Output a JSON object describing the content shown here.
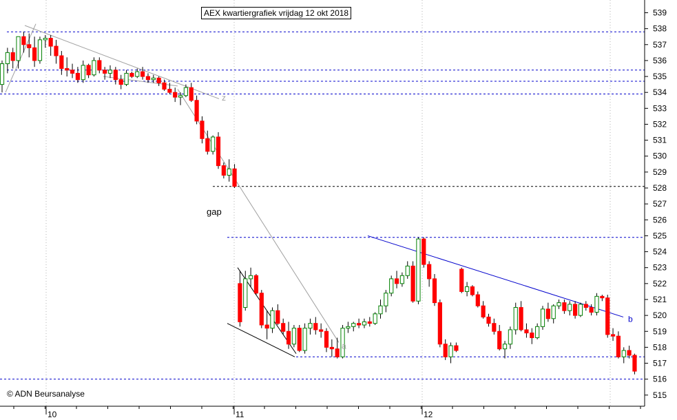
{
  "chart_data": {
    "type": "candlestick",
    "title": "AEX kwartiergrafiek vrijdag 12 okt 2018",
    "copyright": "© ADN Beursanalyse",
    "xlabel": "",
    "ylabel": "",
    "x_ticks": [
      "10",
      "11",
      "12"
    ],
    "y_ticks": [
      515,
      516,
      517,
      518,
      519,
      520,
      521,
      522,
      523,
      524,
      525,
      526,
      527,
      528,
      529,
      530,
      531,
      532,
      533,
      534,
      535,
      536,
      537,
      538,
      539
    ],
    "ylim": [
      514.3,
      539.8
    ],
    "grid": "vertical dotted",
    "colors": {
      "up": "#008000",
      "down": "#ff0000",
      "level": "#0000cc",
      "trend": "#0000cc",
      "aux_trend": "#a0a0a0"
    },
    "horizontal_levels": [
      537.8,
      535.4,
      534.7,
      533.9,
      528.1,
      524.9,
      517.4,
      516.0
    ],
    "annotations": [
      {
        "text": "gap"
      },
      {
        "text": "z"
      },
      {
        "text": "a"
      },
      {
        "text": "b"
      }
    ],
    "candles": [
      [
        534.5,
        536.0,
        534.0,
        535.8
      ],
      [
        535.8,
        536.8,
        535.2,
        536.5
      ],
      [
        536.5,
        536.8,
        535.5,
        536.0
      ],
      [
        536.0,
        537.5,
        535.5,
        537.5
      ],
      [
        537.5,
        537.8,
        536.5,
        537.0
      ],
      [
        537.0,
        537.7,
        536.2,
        536.8
      ],
      [
        536.8,
        537.5,
        535.6,
        536.0
      ],
      [
        536.0,
        537.5,
        535.8,
        537.3
      ],
      [
        537.3,
        537.6,
        536.8,
        537.4
      ],
      [
        537.4,
        537.6,
        536.3,
        536.9
      ],
      [
        536.9,
        537.3,
        535.8,
        536.3
      ],
      [
        536.3,
        536.6,
        535.1,
        535.5
      ],
      [
        535.5,
        536.2,
        535.0,
        535.4
      ],
      [
        535.4,
        535.8,
        534.9,
        535.2
      ],
      [
        535.2,
        535.6,
        534.6,
        534.8
      ],
      [
        534.8,
        536.0,
        534.6,
        535.7
      ],
      [
        535.7,
        535.8,
        534.9,
        535.1
      ],
      [
        535.1,
        536.2,
        535.0,
        536.0
      ],
      [
        536.0,
        536.2,
        535.2,
        535.4
      ],
      [
        535.4,
        535.6,
        534.8,
        535.2
      ],
      [
        535.2,
        535.7,
        534.9,
        535.4
      ],
      [
        535.4,
        535.6,
        534.5,
        534.8
      ],
      [
        534.8,
        535.1,
        534.2,
        534.5
      ],
      [
        534.5,
        535.4,
        534.4,
        535.2
      ],
      [
        535.2,
        535.3,
        534.9,
        535.0
      ],
      [
        535.0,
        535.5,
        534.9,
        535.3
      ],
      [
        535.3,
        535.6,
        534.8,
        535.0
      ],
      [
        535.0,
        535.2,
        534.6,
        534.8
      ],
      [
        534.8,
        535.1,
        534.6,
        534.9
      ],
      [
        534.9,
        535.0,
        534.4,
        534.6
      ],
      [
        534.6,
        534.8,
        534.1,
        534.2
      ],
      [
        534.2,
        534.6,
        533.9,
        534.0
      ],
      [
        534.0,
        534.3,
        533.4,
        533.7
      ],
      [
        533.7,
        534.0,
        533.2,
        533.8
      ],
      [
        533.8,
        534.5,
        533.7,
        534.3
      ],
      [
        534.3,
        534.6,
        533.4,
        533.5
      ],
      [
        533.5,
        533.8,
        532.0,
        532.2
      ],
      [
        532.2,
        532.5,
        530.8,
        531.1
      ],
      [
        531.1,
        531.6,
        530.1,
        530.3
      ],
      [
        530.3,
        531.3,
        530.1,
        531.2
      ],
      [
        531.2,
        531.5,
        529.2,
        529.4
      ],
      [
        529.4,
        529.6,
        528.6,
        528.8
      ],
      [
        528.8,
        529.8,
        528.4,
        529.2
      ],
      [
        529.2,
        529.5,
        528.0,
        528.1
      ],
      [
        522.0,
        522.8,
        519.3,
        519.6
      ],
      [
        520.5,
        522.8,
        520.3,
        522.3
      ],
      [
        522.3,
        523.0,
        521.8,
        522.5
      ],
      [
        522.5,
        522.6,
        521.3,
        521.4
      ],
      [
        521.4,
        521.6,
        519.2,
        519.4
      ],
      [
        519.4,
        520.3,
        518.5,
        519.2
      ],
      [
        519.2,
        520.5,
        518.9,
        520.3
      ],
      [
        520.3,
        520.7,
        519.4,
        519.5
      ],
      [
        519.5,
        519.8,
        518.8,
        519.0
      ],
      [
        519.0,
        519.6,
        517.9,
        518.2
      ],
      [
        518.2,
        519.4,
        518.0,
        519.2
      ],
      [
        519.2,
        519.4,
        517.7,
        517.8
      ],
      [
        517.8,
        519.5,
        517.6,
        519.2
      ],
      [
        519.2,
        519.8,
        518.8,
        519.5
      ],
      [
        519.5,
        519.9,
        518.8,
        519.1
      ],
      [
        519.1,
        519.5,
        518.6,
        519.0
      ],
      [
        519.0,
        519.2,
        517.7,
        518.0
      ],
      [
        518.0,
        518.5,
        517.4,
        517.9
      ],
      [
        517.9,
        518.6,
        517.3,
        517.4
      ],
      [
        517.4,
        519.4,
        517.3,
        519.2
      ],
      [
        519.2,
        519.6,
        518.9,
        519.3
      ],
      [
        519.3,
        519.6,
        519.0,
        519.5
      ],
      [
        519.5,
        519.8,
        519.2,
        519.4
      ],
      [
        519.4,
        519.8,
        519.2,
        519.6
      ],
      [
        519.6,
        519.9,
        519.3,
        519.5
      ],
      [
        519.5,
        520.2,
        519.4,
        520.1
      ],
      [
        520.1,
        521.0,
        519.8,
        520.6
      ],
      [
        520.6,
        521.6,
        520.2,
        521.4
      ],
      [
        521.4,
        522.5,
        521.2,
        522.3
      ],
      [
        522.3,
        522.8,
        521.7,
        522.0
      ],
      [
        522.0,
        522.7,
        521.8,
        522.5
      ],
      [
        522.5,
        523.4,
        522.3,
        523.1
      ],
      [
        523.1,
        523.4,
        520.8,
        520.9
      ],
      [
        520.9,
        524.9,
        520.7,
        524.8
      ],
      [
        524.8,
        524.9,
        523.0,
        523.2
      ],
      [
        523.2,
        523.4,
        521.8,
        522.3
      ],
      [
        522.3,
        522.6,
        520.6,
        520.8
      ],
      [
        520.8,
        521.0,
        518.0,
        518.2
      ],
      [
        518.2,
        518.5,
        517.2,
        517.4
      ],
      [
        517.4,
        518.3,
        517.0,
        518.1
      ],
      [
        518.1,
        518.3,
        517.7,
        517.8
      ],
      [
        522.9,
        523.0,
        521.4,
        521.5
      ],
      [
        521.5,
        522.1,
        521.2,
        521.8
      ],
      [
        521.8,
        521.9,
        521.2,
        521.3
      ],
      [
        521.3,
        521.5,
        520.5,
        520.6
      ],
      [
        520.6,
        520.9,
        519.8,
        519.9
      ],
      [
        519.9,
        520.1,
        519.3,
        519.5
      ],
      [
        519.5,
        519.8,
        518.8,
        519.0
      ],
      [
        519.0,
        519.4,
        517.8,
        517.9
      ],
      [
        517.9,
        518.4,
        517.3,
        518.2
      ],
      [
        518.2,
        519.3,
        517.9,
        519.1
      ],
      [
        519.1,
        520.8,
        518.8,
        520.5
      ],
      [
        520.5,
        520.9,
        519.0,
        519.1
      ],
      [
        519.1,
        519.5,
        518.6,
        518.9
      ],
      [
        518.9,
        519.2,
        518.2,
        518.6
      ],
      [
        518.6,
        519.5,
        518.5,
        519.3
      ],
      [
        519.3,
        520.6,
        519.1,
        520.4
      ],
      [
        520.4,
        520.8,
        519.6,
        519.8
      ],
      [
        519.8,
        520.7,
        519.5,
        520.6
      ],
      [
        520.6,
        521.0,
        520.4,
        520.8
      ],
      [
        520.8,
        521.0,
        520.1,
        520.3
      ],
      [
        520.3,
        520.9,
        520.0,
        520.7
      ],
      [
        520.7,
        520.9,
        519.8,
        520.0
      ],
      [
        520.0,
        520.8,
        519.9,
        520.7
      ],
      [
        520.7,
        520.9,
        520.3,
        520.5
      ],
      [
        520.5,
        520.7,
        520.0,
        520.2
      ],
      [
        520.2,
        521.4,
        520.0,
        521.2
      ],
      [
        521.2,
        521.3,
        520.9,
        521.1
      ],
      [
        521.1,
        521.3,
        518.6,
        518.8
      ],
      [
        518.8,
        519.2,
        518.4,
        518.7
      ],
      [
        518.7,
        519.0,
        517.3,
        517.4
      ],
      [
        517.4,
        518.0,
        517.0,
        517.8
      ],
      [
        517.8,
        518.1,
        517.3,
        517.5
      ],
      [
        517.5,
        517.6,
        516.3,
        516.5
      ]
    ]
  }
}
